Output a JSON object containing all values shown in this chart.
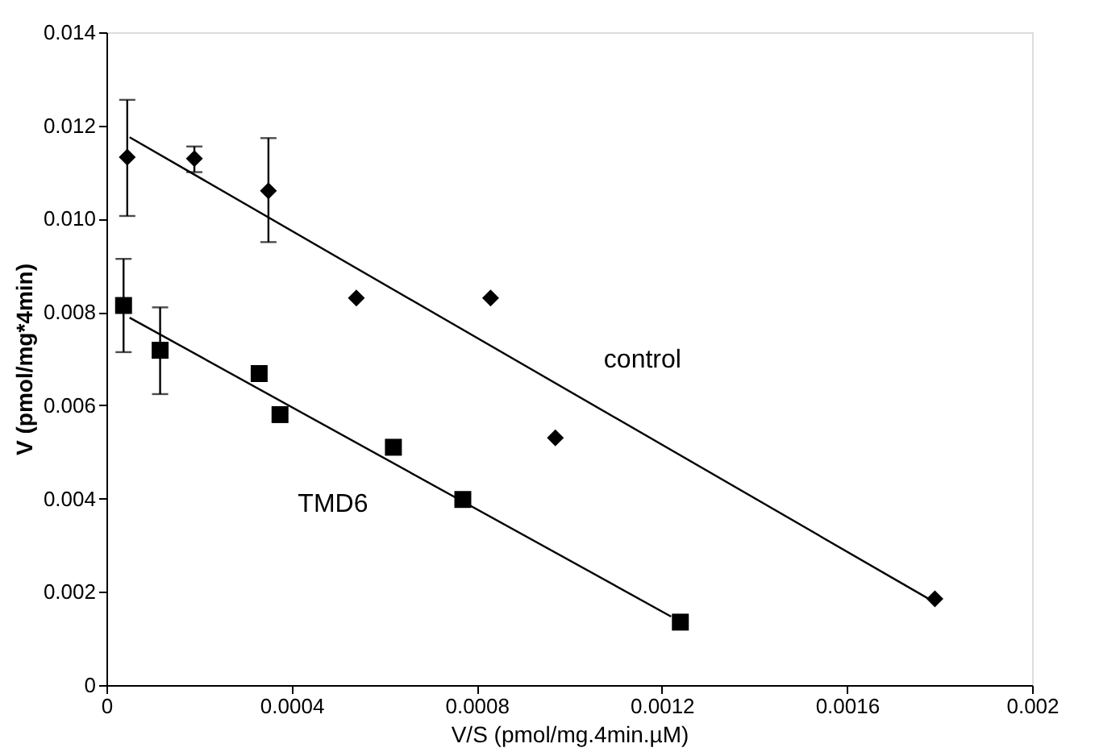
{
  "chart_data": {
    "type": "scatter",
    "xlabel": "V/S (pmol/mg.4min.µM)",
    "ylabel": "V (pmol/mg*4min)",
    "xlim": [
      0,
      0.002
    ],
    "ylim": [
      0,
      0.014
    ],
    "xticks": [
      0,
      0.0004,
      0.0008,
      0.0012,
      0.0016,
      0.002
    ],
    "yticks": [
      0,
      0.002,
      0.004,
      0.006,
      0.008,
      {
        "value": 0.01,
        "label": "0.010"
      },
      0.012,
      0.014
    ],
    "grid": false,
    "series": [
      {
        "marker": "diamond",
        "color": "#000000",
        "x": [
          4.5e-05,
          0.00019,
          0.00035,
          0.00054,
          0.00083,
          0.00097,
          0.00179
        ],
        "values": [
          0.01132,
          0.01129,
          0.0106,
          0.0083,
          0.0083,
          0.0053,
          0.00185
        ],
        "errors": [
          [
            0.01006,
            0.01255
          ],
          [
            0.011,
            0.01155
          ],
          [
            0.0095,
            0.01173
          ],
          null,
          null,
          null,
          null
        ]
      },
      {
        "marker": "square",
        "color": "#000000",
        "x": [
          3.7e-05,
          0.000116,
          0.00033,
          0.000375,
          0.00062,
          0.00077,
          0.00124
        ],
        "values": [
          0.00814,
          0.00718,
          0.00668,
          0.0058,
          0.0051,
          0.00398,
          0.00135
        ],
        "errors": [
          [
            0.00714,
            0.00914
          ],
          [
            0.00624,
            0.0081
          ],
          null,
          null,
          null,
          null,
          null
        ]
      },
      {
        "type": "line",
        "color": "#000000",
        "line_style": "solid",
        "x": [
          5e-05,
          0.00178
        ],
        "values": [
          0.01175,
          0.00183
        ]
      },
      {
        "type": "line",
        "color": "#000000",
        "line_style": "solid",
        "x": [
          5e-05,
          0.00122
        ],
        "values": [
          0.00788,
          0.00147
        ]
      }
    ],
    "annotations": [
      "control",
      "TMD6"
    ]
  }
}
